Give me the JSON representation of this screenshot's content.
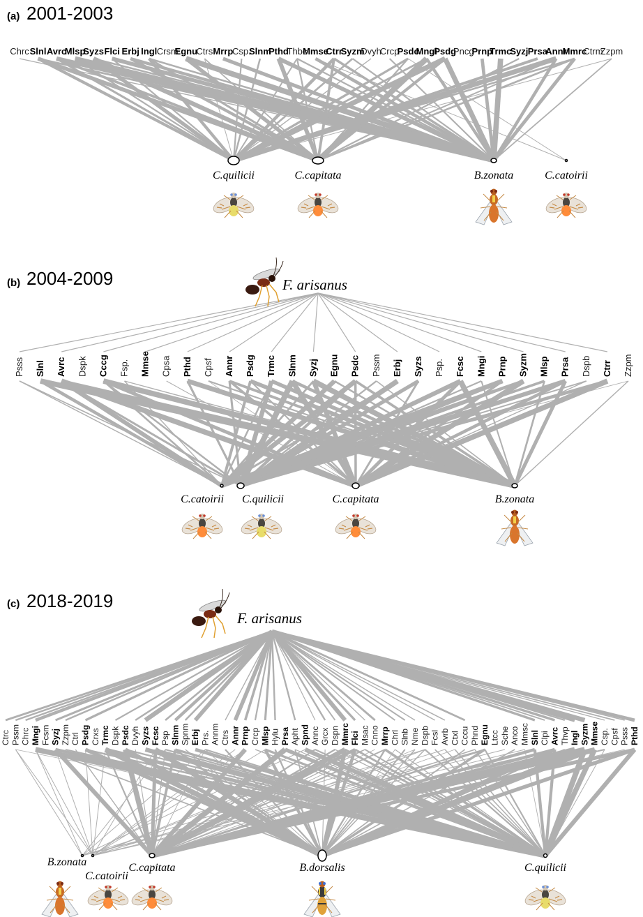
{
  "panels": [
    {
      "label": "(a)",
      "title": "2001-2003",
      "parasitoid": null,
      "plants": [
        {
          "name": "Chrc",
          "bold": false
        },
        {
          "name": "Slnl",
          "bold": true
        },
        {
          "name": "Avrc",
          "bold": true
        },
        {
          "name": "Mlsp",
          "bold": true
        },
        {
          "name": "Syzs",
          "bold": true
        },
        {
          "name": "Flci",
          "bold": true
        },
        {
          "name": "Erbj",
          "bold": true
        },
        {
          "name": "Ingl",
          "bold": true
        },
        {
          "name": "Crsm",
          "bold": false
        },
        {
          "name": "Egnu",
          "bold": true
        },
        {
          "name": "Ctrs",
          "bold": false
        },
        {
          "name": "Mrrp",
          "bold": true
        },
        {
          "name": "Csp.",
          "bold": false
        },
        {
          "name": "Slnm",
          "bold": true
        },
        {
          "name": "Pthd",
          "bold": true
        },
        {
          "name": "Thbc",
          "bold": false
        },
        {
          "name": "Mmse",
          "bold": true
        },
        {
          "name": "Ctrr",
          "bold": true
        },
        {
          "name": "Syzm",
          "bold": true
        },
        {
          "name": "Dvyh",
          "bold": false
        },
        {
          "name": "Crcp",
          "bold": false
        },
        {
          "name": "Psdc",
          "bold": true
        },
        {
          "name": "Mngi",
          "bold": true
        },
        {
          "name": "Psdg",
          "bold": true
        },
        {
          "name": "Pncg",
          "bold": false
        },
        {
          "name": "Prnp",
          "bold": true
        },
        {
          "name": "Trmc",
          "bold": true
        },
        {
          "name": "Syzj",
          "bold": true
        },
        {
          "name": "Prsa",
          "bold": true
        },
        {
          "name": "Annr",
          "bold": true
        },
        {
          "name": "Mmrc",
          "bold": true
        },
        {
          "name": "Ctrm",
          "bold": false
        },
        {
          "name": "Zzpm",
          "bold": false
        }
      ],
      "flies": [
        {
          "name": "C.quilicii",
          "fly": "quilicii"
        },
        {
          "name": "C.capitata",
          "fly": "capitata"
        },
        {
          "name": "B.zonata",
          "fly": "zonata"
        },
        {
          "name": "C.catoirii",
          "fly": "catoirii"
        }
      ]
    },
    {
      "label": "(b)",
      "title": "2004-2009",
      "parasitoid": "F. arisanus",
      "plants": [
        {
          "name": "Psss",
          "bold": false
        },
        {
          "name": "Slnl",
          "bold": true
        },
        {
          "name": "Avrc",
          "bold": true
        },
        {
          "name": "Dspk",
          "bold": false
        },
        {
          "name": "Cccg",
          "bold": true
        },
        {
          "name": "Fsp.",
          "bold": false
        },
        {
          "name": "Mmse",
          "bold": true
        },
        {
          "name": "Cpsa",
          "bold": false
        },
        {
          "name": "Pthd",
          "bold": true
        },
        {
          "name": "Cpsf",
          "bold": false
        },
        {
          "name": "Annr",
          "bold": true
        },
        {
          "name": "Psdg",
          "bold": true
        },
        {
          "name": "Trmc",
          "bold": true
        },
        {
          "name": "Slnm",
          "bold": true
        },
        {
          "name": "Syzj",
          "bold": true
        },
        {
          "name": "Egnu",
          "bold": true
        },
        {
          "name": "Psdc",
          "bold": true
        },
        {
          "name": "Pssm",
          "bold": false
        },
        {
          "name": "Erbj",
          "bold": true
        },
        {
          "name": "Syzs",
          "bold": true
        },
        {
          "name": "Psp.",
          "bold": false
        },
        {
          "name": "Fcsc",
          "bold": true
        },
        {
          "name": "Mngi",
          "bold": true
        },
        {
          "name": "Prnp",
          "bold": true
        },
        {
          "name": "Syzm",
          "bold": true
        },
        {
          "name": "Mlsp",
          "bold": true
        },
        {
          "name": "Prsa",
          "bold": true
        },
        {
          "name": "Dspb",
          "bold": false
        },
        {
          "name": "Ctrr",
          "bold": true
        },
        {
          "name": "Zzpm",
          "bold": false
        }
      ],
      "flies": [
        {
          "name": "C.catoirii",
          "fly": "catoirii"
        },
        {
          "name": "C.quilicii",
          "fly": "quilicii"
        },
        {
          "name": "C.capitata",
          "fly": "capitata"
        },
        {
          "name": "B.zonata",
          "fly": "zonata"
        }
      ]
    },
    {
      "label": "(c)",
      "title": "2018-2019",
      "parasitoid": "F. arisanus",
      "plants": [
        {
          "name": "Ctrc",
          "bold": false
        },
        {
          "name": "Pssm",
          "bold": false
        },
        {
          "name": "Chrc",
          "bold": false
        },
        {
          "name": "Mngi",
          "bold": true
        },
        {
          "name": "Fcsm",
          "bold": false
        },
        {
          "name": "Syzj",
          "bold": true
        },
        {
          "name": "Zzpm",
          "bold": false
        },
        {
          "name": "Ctrl",
          "bold": false
        },
        {
          "name": "Psdg",
          "bold": true
        },
        {
          "name": "Crxs",
          "bold": false
        },
        {
          "name": "Trmc",
          "bold": true
        },
        {
          "name": "Dspk",
          "bold": false
        },
        {
          "name": "Psdc",
          "bold": true
        },
        {
          "name": "Dvyh",
          "bold": false
        },
        {
          "name": "Syzs",
          "bold": true
        },
        {
          "name": "Fcsc",
          "bold": true
        },
        {
          "name": "Psp",
          "bold": false
        },
        {
          "name": "Slnm",
          "bold": true
        },
        {
          "name": "Spnm",
          "bold": false
        },
        {
          "name": "Erbj",
          "bold": true
        },
        {
          "name": "Prs.",
          "bold": false
        },
        {
          "name": "Annm",
          "bold": false
        },
        {
          "name": "Ctrs",
          "bold": false
        },
        {
          "name": "Annr",
          "bold": true
        },
        {
          "name": "Prnp",
          "bold": true
        },
        {
          "name": "Crcp",
          "bold": false
        },
        {
          "name": "Mlsp",
          "bold": true
        },
        {
          "name": "Hylu",
          "bold": false
        },
        {
          "name": "Prsa",
          "bold": true
        },
        {
          "name": "Apht",
          "bold": false
        },
        {
          "name": "Spnd",
          "bold": true
        },
        {
          "name": "Annc",
          "bold": false
        },
        {
          "name": "Grcx",
          "bold": false
        },
        {
          "name": "Dspn",
          "bold": false
        },
        {
          "name": "Mmrc",
          "bold": true
        },
        {
          "name": "Flci",
          "bold": true
        },
        {
          "name": "Msac",
          "bold": false
        },
        {
          "name": "Cnno",
          "bold": false
        },
        {
          "name": "Mrrp",
          "bold": true
        },
        {
          "name": "Chrl",
          "bold": false
        },
        {
          "name": "Slnb",
          "bold": false
        },
        {
          "name": "Nme",
          "bold": false
        },
        {
          "name": "Dspb",
          "bold": false
        },
        {
          "name": "Fcsl",
          "bold": false
        },
        {
          "name": "Avrb",
          "bold": false
        },
        {
          "name": "Ctxl",
          "bold": false
        },
        {
          "name": "Cccu",
          "bold": false
        },
        {
          "name": "Phnd",
          "bold": false
        },
        {
          "name": "Egnu",
          "bold": true
        },
        {
          "name": "Ltcc",
          "bold": false
        },
        {
          "name": "Sche",
          "bold": false
        },
        {
          "name": "Anco",
          "bold": false
        },
        {
          "name": "Mmsc",
          "bold": false
        },
        {
          "name": "Slnl",
          "bold": true
        },
        {
          "name": "Clpi",
          "bold": false
        },
        {
          "name": "Avrc",
          "bold": true
        },
        {
          "name": "Thvp",
          "bold": false
        },
        {
          "name": "Ingl",
          "bold": true
        },
        {
          "name": "Syzm",
          "bold": true
        },
        {
          "name": "Mmse",
          "bold": true
        },
        {
          "name": "Csp.",
          "bold": false
        },
        {
          "name": "Cpsf",
          "bold": false
        },
        {
          "name": "Psss",
          "bold": false
        },
        {
          "name": "Pthd",
          "bold": true
        }
      ],
      "flies": [
        {
          "name": "B.zonata",
          "fly": "zonata"
        },
        {
          "name": "C.catoirii",
          "fly": "catoirii"
        },
        {
          "name": "C.capitata",
          "fly": "capitata"
        },
        {
          "name": "B.dorsalis",
          "fly": "dorsalis"
        },
        {
          "name": "C.quilicii",
          "fly": "quilicii"
        }
      ]
    }
  ],
  "colors": {
    "link": "#b0b0b0",
    "node_stroke": "#000000",
    "ceratitis_body": "#ff8c3a",
    "bactrocera_body": "#d9752c",
    "wasp_body": "#7a2b14"
  },
  "icons": [
    "fruit-fly-icon",
    "parasitoid-wasp-icon"
  ]
}
